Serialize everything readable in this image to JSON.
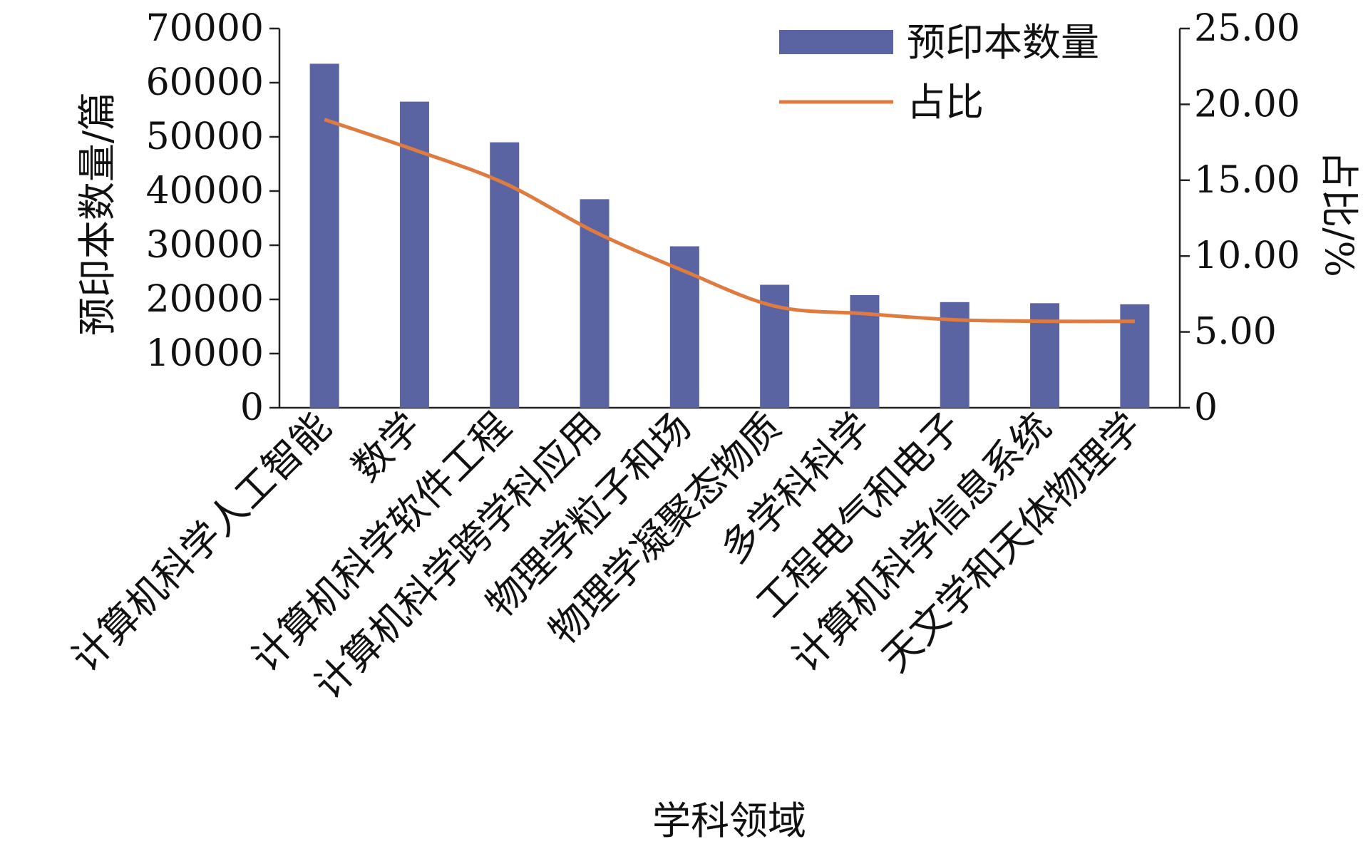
{
  "chart_data": {
    "type": "bar",
    "categories": [
      "计算机科学人工智能",
      "数学",
      "计算机科学软件工程",
      "计算机科学跨学科应用",
      "物理学粒子和场",
      "物理学凝聚态物质",
      "多学科科学",
      "工程电气和电子",
      "计算机科学信息系统",
      "天文学和天体物理学"
    ],
    "series": [
      {
        "name": "预印本数量",
        "type": "bar",
        "axis": "left",
        "color": "#5a64a3",
        "values": [
          63500,
          56500,
          49000,
          38500,
          29800,
          22700,
          20800,
          19500,
          19300,
          19100
        ]
      },
      {
        "name": "占比",
        "type": "line",
        "axis": "right",
        "color": "#e07b40",
        "values": [
          19.0,
          17.0,
          14.8,
          11.6,
          9.0,
          6.7,
          6.2,
          5.8,
          5.7,
          5.7
        ]
      }
    ],
    "xlabel": "学科领域",
    "ylabel": "预印本数量/篇",
    "y2label": "占比/%",
    "ylim": [
      0,
      70000
    ],
    "y2lim": [
      0,
      25
    ],
    "yticks": [
      "0",
      "10000",
      "20000",
      "30000",
      "40000",
      "50000",
      "60000",
      "70000"
    ],
    "y2ticks": [
      "0",
      "5.00",
      "10.00",
      "15.00",
      "20.00",
      "25.00"
    ],
    "legend": {
      "position": "top-right",
      "items": [
        "预印本数量",
        "占比"
      ]
    },
    "grid": false
  }
}
